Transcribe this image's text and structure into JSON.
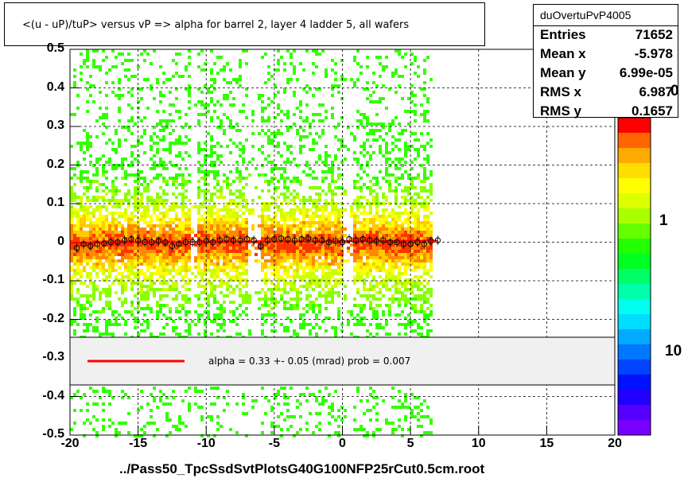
{
  "header": {
    "title": "<(u - uP)/tuP> versus   vP => alpha for barrel 2, layer 4 ladder 5, all wafers"
  },
  "stats": {
    "name": "duOvertuPvP4005",
    "rows": [
      {
        "key": "Entries",
        "value": "71652"
      },
      {
        "key": "Mean x",
        "value": "-5.978"
      },
      {
        "key": "Mean y",
        "value": "6.99e-05"
      },
      {
        "key": "RMS x",
        "value": "6.987"
      },
      {
        "key": "RMS y",
        "value": "0.1657"
      }
    ]
  },
  "fit": {
    "label": "alpha =     0.33 +-  0.05 (mrad) prob = 0.007",
    "line_color": "#ff0000"
  },
  "footer": {
    "xlabel": "../Pass50_TpcSsdSvtPlotsG40G100NFP25rCut0.5cm.root"
  },
  "chart_data": {
    "type": "heatmap",
    "xlim": [
      -20,
      20
    ],
    "ylim": [
      -0.5,
      0.5
    ],
    "x_ticks": [
      "-20",
      "-15",
      "-10",
      "-5",
      "0",
      "5",
      "10",
      "15",
      "20"
    ],
    "y_ticks": [
      "-0.5",
      "-0.4",
      "-0.3",
      "-0.2",
      "-0.1",
      "0",
      "0.1",
      "0.2",
      "0.3",
      "0.4",
      "0.5"
    ],
    "palette_labels": [
      "1",
      "10"
    ],
    "palette_partial_label": "0",
    "data_x_range": [
      -20,
      6.5
    ],
    "grid": true,
    "profile_points": [
      {
        "x": -19.5,
        "y": -0.015
      },
      {
        "x": -19.0,
        "y": -0.005
      },
      {
        "x": -18.5,
        "y": -0.01
      },
      {
        "x": -18.0,
        "y": -0.005
      },
      {
        "x": -17.5,
        "y": -0.003
      },
      {
        "x": -17.0,
        "y": 0.0
      },
      {
        "x": -16.5,
        "y": 0.0
      },
      {
        "x": -16.0,
        "y": 0.005
      },
      {
        "x": -15.5,
        "y": 0.008
      },
      {
        "x": -15.0,
        "y": 0.005
      },
      {
        "x": -14.5,
        "y": 0.0
      },
      {
        "x": -14.0,
        "y": 0.0
      },
      {
        "x": -13.5,
        "y": 0.003
      },
      {
        "x": -13.0,
        "y": 0.0
      },
      {
        "x": -12.5,
        "y": -0.01
      },
      {
        "x": -12.0,
        "y": -0.005
      },
      {
        "x": -11.5,
        "y": 0.0
      },
      {
        "x": -11.0,
        "y": 0.0
      },
      {
        "x": -10.5,
        "y": 0.0
      },
      {
        "x": -10.0,
        "y": 0.003
      },
      {
        "x": -9.5,
        "y": 0.0
      },
      {
        "x": -9.0,
        "y": 0.005
      },
      {
        "x": -8.5,
        "y": 0.008
      },
      {
        "x": -8.0,
        "y": 0.005
      },
      {
        "x": -7.5,
        "y": 0.005
      },
      {
        "x": -7.0,
        "y": 0.008
      },
      {
        "x": -6.5,
        "y": 0.005
      },
      {
        "x": -6.0,
        "y": -0.01
      },
      {
        "x": -5.5,
        "y": 0.005
      },
      {
        "x": -5.0,
        "y": 0.008
      },
      {
        "x": -4.5,
        "y": 0.01
      },
      {
        "x": -4.0,
        "y": 0.008
      },
      {
        "x": -3.5,
        "y": 0.005
      },
      {
        "x": -3.0,
        "y": 0.008
      },
      {
        "x": -2.5,
        "y": 0.01
      },
      {
        "x": -2.0,
        "y": 0.005
      },
      {
        "x": -1.5,
        "y": 0.005
      },
      {
        "x": -1.0,
        "y": 0.0
      },
      {
        "x": -0.5,
        "y": 0.003
      },
      {
        "x": 0.0,
        "y": 0.0
      },
      {
        "x": 0.5,
        "y": 0.008
      },
      {
        "x": 1.0,
        "y": 0.005
      },
      {
        "x": 1.5,
        "y": 0.008
      },
      {
        "x": 2.0,
        "y": 0.005
      },
      {
        "x": 2.5,
        "y": 0.003
      },
      {
        "x": 3.0,
        "y": 0.005
      },
      {
        "x": 3.5,
        "y": 0.0
      },
      {
        "x": 4.0,
        "y": 0.0
      },
      {
        "x": 4.5,
        "y": -0.005
      },
      {
        "x": 5.0,
        "y": -0.005
      },
      {
        "x": 5.5,
        "y": 0.0
      },
      {
        "x": 6.0,
        "y": -0.005
      },
      {
        "x": 6.5,
        "y": 0.003
      },
      {
        "x": 7.0,
        "y": 0.005
      }
    ],
    "fit_line": {
      "x": [
        -20,
        7
      ],
      "y": [
        -0.001,
        0.004
      ]
    }
  }
}
